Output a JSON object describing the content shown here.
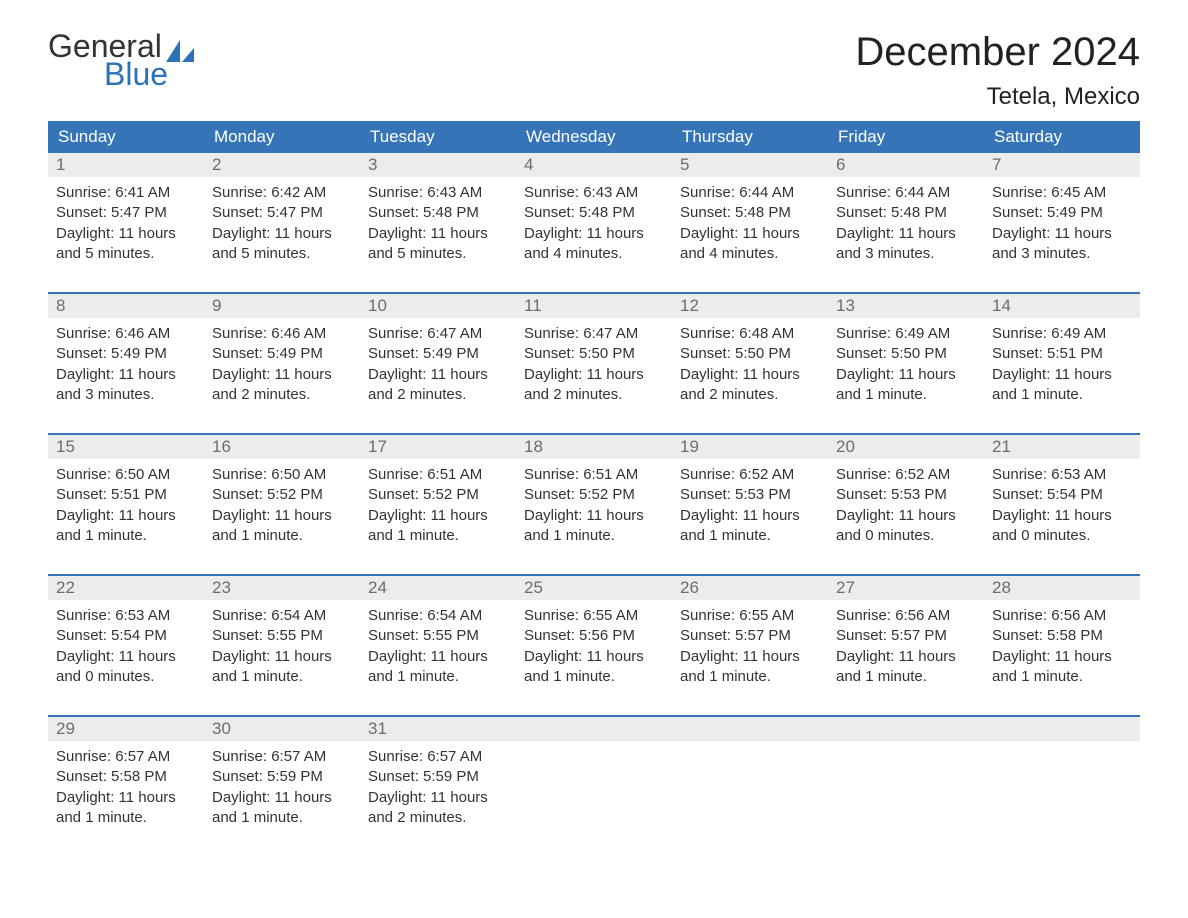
{
  "logo": {
    "text1": "General",
    "text2": "Blue",
    "sail_color": "#2b72b8"
  },
  "title": "December 2024",
  "location": "Tetela, Mexico",
  "colors": {
    "header_bg": "#3575b7",
    "header_text": "#ffffff",
    "daynum_bg": "#ececec",
    "daynum_text": "#6d6d6d",
    "body_text": "#333333",
    "week_border": "#3575b7",
    "page_bg": "#ffffff",
    "logo_blue": "#2b72b8"
  },
  "typography": {
    "title_fontsize": 40,
    "location_fontsize": 24,
    "header_fontsize": 17,
    "daynum_fontsize": 17,
    "body_fontsize": 15
  },
  "weekdays": [
    "Sunday",
    "Monday",
    "Tuesday",
    "Wednesday",
    "Thursday",
    "Friday",
    "Saturday"
  ],
  "weeks": [
    [
      {
        "n": "1",
        "sunrise": "Sunrise: 6:41 AM",
        "sunset": "Sunset: 5:47 PM",
        "day1": "Daylight: 11 hours",
        "day2": "and 5 minutes."
      },
      {
        "n": "2",
        "sunrise": "Sunrise: 6:42 AM",
        "sunset": "Sunset: 5:47 PM",
        "day1": "Daylight: 11 hours",
        "day2": "and 5 minutes."
      },
      {
        "n": "3",
        "sunrise": "Sunrise: 6:43 AM",
        "sunset": "Sunset: 5:48 PM",
        "day1": "Daylight: 11 hours",
        "day2": "and 5 minutes."
      },
      {
        "n": "4",
        "sunrise": "Sunrise: 6:43 AM",
        "sunset": "Sunset: 5:48 PM",
        "day1": "Daylight: 11 hours",
        "day2": "and 4 minutes."
      },
      {
        "n": "5",
        "sunrise": "Sunrise: 6:44 AM",
        "sunset": "Sunset: 5:48 PM",
        "day1": "Daylight: 11 hours",
        "day2": "and 4 minutes."
      },
      {
        "n": "6",
        "sunrise": "Sunrise: 6:44 AM",
        "sunset": "Sunset: 5:48 PM",
        "day1": "Daylight: 11 hours",
        "day2": "and 3 minutes."
      },
      {
        "n": "7",
        "sunrise": "Sunrise: 6:45 AM",
        "sunset": "Sunset: 5:49 PM",
        "day1": "Daylight: 11 hours",
        "day2": "and 3 minutes."
      }
    ],
    [
      {
        "n": "8",
        "sunrise": "Sunrise: 6:46 AM",
        "sunset": "Sunset: 5:49 PM",
        "day1": "Daylight: 11 hours",
        "day2": "and 3 minutes."
      },
      {
        "n": "9",
        "sunrise": "Sunrise: 6:46 AM",
        "sunset": "Sunset: 5:49 PM",
        "day1": "Daylight: 11 hours",
        "day2": "and 2 minutes."
      },
      {
        "n": "10",
        "sunrise": "Sunrise: 6:47 AM",
        "sunset": "Sunset: 5:49 PM",
        "day1": "Daylight: 11 hours",
        "day2": "and 2 minutes."
      },
      {
        "n": "11",
        "sunrise": "Sunrise: 6:47 AM",
        "sunset": "Sunset: 5:50 PM",
        "day1": "Daylight: 11 hours",
        "day2": "and 2 minutes."
      },
      {
        "n": "12",
        "sunrise": "Sunrise: 6:48 AM",
        "sunset": "Sunset: 5:50 PM",
        "day1": "Daylight: 11 hours",
        "day2": "and 2 minutes."
      },
      {
        "n": "13",
        "sunrise": "Sunrise: 6:49 AM",
        "sunset": "Sunset: 5:50 PM",
        "day1": "Daylight: 11 hours",
        "day2": "and 1 minute."
      },
      {
        "n": "14",
        "sunrise": "Sunrise: 6:49 AM",
        "sunset": "Sunset: 5:51 PM",
        "day1": "Daylight: 11 hours",
        "day2": "and 1 minute."
      }
    ],
    [
      {
        "n": "15",
        "sunrise": "Sunrise: 6:50 AM",
        "sunset": "Sunset: 5:51 PM",
        "day1": "Daylight: 11 hours",
        "day2": "and 1 minute."
      },
      {
        "n": "16",
        "sunrise": "Sunrise: 6:50 AM",
        "sunset": "Sunset: 5:52 PM",
        "day1": "Daylight: 11 hours",
        "day2": "and 1 minute."
      },
      {
        "n": "17",
        "sunrise": "Sunrise: 6:51 AM",
        "sunset": "Sunset: 5:52 PM",
        "day1": "Daylight: 11 hours",
        "day2": "and 1 minute."
      },
      {
        "n": "18",
        "sunrise": "Sunrise: 6:51 AM",
        "sunset": "Sunset: 5:52 PM",
        "day1": "Daylight: 11 hours",
        "day2": "and 1 minute."
      },
      {
        "n": "19",
        "sunrise": "Sunrise: 6:52 AM",
        "sunset": "Sunset: 5:53 PM",
        "day1": "Daylight: 11 hours",
        "day2": "and 1 minute."
      },
      {
        "n": "20",
        "sunrise": "Sunrise: 6:52 AM",
        "sunset": "Sunset: 5:53 PM",
        "day1": "Daylight: 11 hours",
        "day2": "and 0 minutes."
      },
      {
        "n": "21",
        "sunrise": "Sunrise: 6:53 AM",
        "sunset": "Sunset: 5:54 PM",
        "day1": "Daylight: 11 hours",
        "day2": "and 0 minutes."
      }
    ],
    [
      {
        "n": "22",
        "sunrise": "Sunrise: 6:53 AM",
        "sunset": "Sunset: 5:54 PM",
        "day1": "Daylight: 11 hours",
        "day2": "and 0 minutes."
      },
      {
        "n": "23",
        "sunrise": "Sunrise: 6:54 AM",
        "sunset": "Sunset: 5:55 PM",
        "day1": "Daylight: 11 hours",
        "day2": "and 1 minute."
      },
      {
        "n": "24",
        "sunrise": "Sunrise: 6:54 AM",
        "sunset": "Sunset: 5:55 PM",
        "day1": "Daylight: 11 hours",
        "day2": "and 1 minute."
      },
      {
        "n": "25",
        "sunrise": "Sunrise: 6:55 AM",
        "sunset": "Sunset: 5:56 PM",
        "day1": "Daylight: 11 hours",
        "day2": "and 1 minute."
      },
      {
        "n": "26",
        "sunrise": "Sunrise: 6:55 AM",
        "sunset": "Sunset: 5:57 PM",
        "day1": "Daylight: 11 hours",
        "day2": "and 1 minute."
      },
      {
        "n": "27",
        "sunrise": "Sunrise: 6:56 AM",
        "sunset": "Sunset: 5:57 PM",
        "day1": "Daylight: 11 hours",
        "day2": "and 1 minute."
      },
      {
        "n": "28",
        "sunrise": "Sunrise: 6:56 AM",
        "sunset": "Sunset: 5:58 PM",
        "day1": "Daylight: 11 hours",
        "day2": "and 1 minute."
      }
    ],
    [
      {
        "n": "29",
        "sunrise": "Sunrise: 6:57 AM",
        "sunset": "Sunset: 5:58 PM",
        "day1": "Daylight: 11 hours",
        "day2": "and 1 minute."
      },
      {
        "n": "30",
        "sunrise": "Sunrise: 6:57 AM",
        "sunset": "Sunset: 5:59 PM",
        "day1": "Daylight: 11 hours",
        "day2": "and 1 minute."
      },
      {
        "n": "31",
        "sunrise": "Sunrise: 6:57 AM",
        "sunset": "Sunset: 5:59 PM",
        "day1": "Daylight: 11 hours",
        "day2": "and 2 minutes."
      },
      null,
      null,
      null,
      null
    ]
  ]
}
